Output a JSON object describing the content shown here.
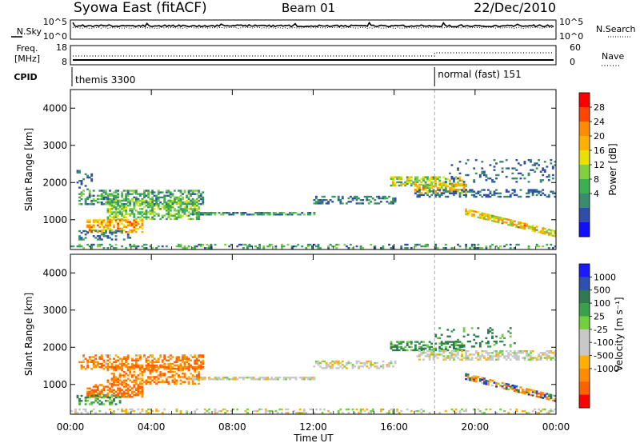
{
  "header": {
    "station": "Syowa East (fitACF)",
    "beam": "Beam 01",
    "date": "22/Dec/2010"
  },
  "top_panels": {
    "nsky_label": "N.Sky",
    "nsearch_label": "N.Search",
    "noise_ticks": [
      "10^5",
      "10^0"
    ],
    "freq_label_1": "Freq.",
    "freq_label_2": "[MHz]",
    "freq_ticks": [
      "18",
      "8"
    ],
    "nave_label": "Nave",
    "nave_ticks": [
      "60",
      "0"
    ],
    "cpid_label": "CPID",
    "cpid_segments": [
      {
        "name": "themis 3300",
        "start_hour": 0
      },
      {
        "name": "normal (fast) 151",
        "start_hour": 18
      }
    ]
  },
  "power_panel": {
    "ylabel": "Slant Range [km]",
    "colorbar_label": "Power [dB]",
    "colorbar_ticks": [
      "28",
      "24",
      "20",
      "16",
      "12",
      "8",
      "4"
    ],
    "colorbar_colors": [
      "#ff0000",
      "#ff4500",
      "#ff8c00",
      "#ffb000",
      "#e8e000",
      "#80d040",
      "#3ab050",
      "#3a8c6e",
      "#2f4ea8",
      "#1010ff"
    ]
  },
  "velocity_panel": {
    "ylabel": "Slant Range [km]",
    "colorbar_label": "Velocity [m s⁻¹]",
    "colorbar_ticks": [
      "1000",
      "500",
      "100",
      "25",
      "-25",
      "-100",
      "-500",
      "-1000"
    ],
    "colorbar_colors": [
      "#1a1aff",
      "#2e50b0",
      "#2f7a4f",
      "#3aa04a",
      "#70d040",
      "#c8c8c8",
      "#c8c8c8",
      "#ffb000",
      "#ff8c00",
      "#ff6000",
      "#ff0000"
    ]
  },
  "x_axis": {
    "label": "Time UT",
    "tick_labels": [
      "00:00",
      "04:00",
      "08:00",
      "12:00",
      "16:00",
      "20:00",
      "00:00"
    ]
  },
  "chart_data": [
    {
      "type": "heatmap",
      "name": "power",
      "x_range_hours": [
        0,
        24
      ],
      "y_range_km": [
        200,
        4500
      ],
      "y_ticks": [
        1000,
        2000,
        3000,
        4000
      ],
      "value_range_db": [
        0,
        32
      ],
      "bands": [
        {
          "t0": 0.4,
          "t1": 6.5,
          "r0": 1400,
          "r1": 1800,
          "dens": 0.55,
          "v": [
            4,
            16
          ]
        },
        {
          "t0": 1.8,
          "t1": 6.3,
          "r0": 1000,
          "r1": 1500,
          "dens": 0.55,
          "v": [
            8,
            18
          ]
        },
        {
          "t0": 0.8,
          "t1": 3.6,
          "r0": 650,
          "r1": 1000,
          "dens": 0.6,
          "v": [
            16,
            28
          ]
        },
        {
          "t0": 0.4,
          "t1": 3.0,
          "r0": 450,
          "r1": 700,
          "dens": 0.4,
          "v": [
            4,
            10
          ]
        },
        {
          "t0": 0.3,
          "t1": 1.0,
          "r0": 1800,
          "r1": 2300,
          "dens": 0.25,
          "v": [
            4,
            8
          ]
        },
        {
          "t0": 6.0,
          "t1": 12.0,
          "r0": 1120,
          "r1": 1200,
          "dens": 0.7,
          "v": [
            4,
            14
          ]
        },
        {
          "t0": 12.0,
          "t1": 16.0,
          "r0": 1420,
          "r1": 1620,
          "dens": 0.45,
          "v": [
            4,
            10
          ]
        },
        {
          "t0": 15.8,
          "t1": 19.5,
          "r0": 1900,
          "r1": 2150,
          "dens": 0.55,
          "v": [
            8,
            22
          ]
        },
        {
          "t0": 17.0,
          "t1": 19.6,
          "r0": 1700,
          "r1": 1950,
          "dens": 0.6,
          "v": [
            12,
            26
          ]
        },
        {
          "t0": 17.0,
          "t1": 24.0,
          "r0": 1600,
          "r1": 1800,
          "dens": 0.35,
          "v": [
            4,
            8
          ]
        },
        {
          "t0": 18.5,
          "t1": 24.0,
          "r0": 2000,
          "r1": 2600,
          "dens": 0.15,
          "v": [
            4,
            8
          ]
        },
        {
          "t0": 0.0,
          "t1": 24.0,
          "r0": 220,
          "r1": 320,
          "dens": 0.3,
          "v": [
            4,
            16
          ]
        }
      ],
      "trails": [
        {
          "t0": 19.5,
          "t1": 24.0,
          "r_start": 1200,
          "r_end": 600,
          "width": 150,
          "dens": 0.7,
          "v": [
            12,
            26
          ]
        }
      ]
    },
    {
      "type": "heatmap",
      "name": "velocity",
      "x_range_hours": [
        0,
        24
      ],
      "y_range_km": [
        200,
        4500
      ],
      "y_ticks": [
        1000,
        2000,
        3000,
        4000
      ],
      "value_range_ms": [
        -1000,
        1000
      ],
      "bands": [
        {
          "t0": 0.4,
          "t1": 6.5,
          "r0": 1400,
          "r1": 1800,
          "dens": 0.5,
          "v": [
            -500,
            0
          ]
        },
        {
          "t0": 1.8,
          "t1": 6.3,
          "r0": 1000,
          "r1": 1500,
          "dens": 0.5,
          "v": [
            -500,
            -25
          ]
        },
        {
          "t0": 0.8,
          "t1": 3.6,
          "r0": 650,
          "r1": 1000,
          "dens": 0.6,
          "v": [
            -600,
            -100
          ]
        },
        {
          "t0": 0.3,
          "t1": 2.5,
          "r0": 450,
          "r1": 700,
          "dens": 0.4,
          "v": [
            25,
            150
          ]
        },
        {
          "t0": 6.0,
          "t1": 12.0,
          "r0": 1120,
          "r1": 1200,
          "dens": 0.7,
          "v": [
            -40,
            40
          ]
        },
        {
          "t0": 12.0,
          "t1": 16.0,
          "r0": 1420,
          "r1": 1620,
          "dens": 0.35,
          "v": [
            -40,
            40
          ]
        },
        {
          "t0": 15.8,
          "t1": 19.5,
          "r0": 1900,
          "r1": 2150,
          "dens": 0.55,
          "v": [
            25,
            200
          ]
        },
        {
          "t0": 17.0,
          "t1": 24.0,
          "r0": 1650,
          "r1": 1900,
          "dens": 0.5,
          "v": [
            -40,
            40
          ]
        },
        {
          "t0": 18.0,
          "t1": 22.0,
          "r0": 2000,
          "r1": 2500,
          "dens": 0.15,
          "v": [
            25,
            200
          ]
        },
        {
          "t0": 0.0,
          "t1": 24.0,
          "r0": 220,
          "r1": 320,
          "dens": 0.3,
          "v": [
            -60,
            60
          ]
        }
      ],
      "trails": [
        {
          "t0": 19.5,
          "t1": 24.0,
          "r_start": 1200,
          "r_end": 600,
          "width": 150,
          "dens": 0.7,
          "v": [
            -400,
            600
          ]
        }
      ]
    }
  ]
}
